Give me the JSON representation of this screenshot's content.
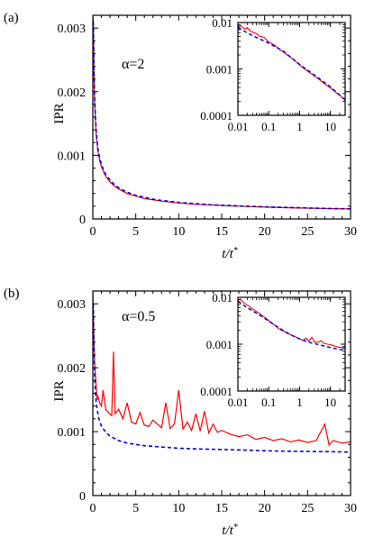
{
  "colors": {
    "data": "#ff0000",
    "fit": "#0000ee",
    "axes": "#000000"
  },
  "chart_data": [
    {
      "type": "line",
      "panel_tag": "(a)",
      "annotation": "α=2",
      "xlabel": "t/t*",
      "ylabel": "IPR",
      "xlim": [
        0,
        30
      ],
      "ylim": [
        0,
        0.0032
      ],
      "xticks": [
        0,
        5,
        10,
        15,
        20,
        25,
        30
      ],
      "yticks": [
        0,
        0.001,
        0.002,
        0.003
      ],
      "xtick_labels": [
        "0",
        "5",
        "10",
        "15",
        "20",
        "25",
        "30"
      ],
      "ytick_labels": [
        "0",
        "0.001",
        "0.002",
        "0.003"
      ],
      "series": [
        {
          "style": "solid",
          "color": "#ff0000",
          "x": [
            0,
            0.05,
            0.1,
            0.15,
            0.2,
            0.3,
            0.4,
            0.5,
            0.6,
            0.8,
            1,
            1.25,
            1.5,
            2,
            2.5,
            3,
            4,
            5,
            6,
            7,
            8,
            10,
            12,
            14,
            16,
            18,
            20,
            22,
            24,
            26,
            28,
            30
          ],
          "y": [
            0.0032,
            0.0031,
            0.0026,
            0.0022,
            0.0019,
            0.00155,
            0.00132,
            0.00118,
            0.00106,
            0.00092,
            0.00082,
            0.00074,
            0.00067,
            0.00058,
            0.00052,
            0.00047,
            0.0004,
            0.00036,
            0.00032,
            0.0003,
            0.00028,
            0.00025,
            0.00023,
            0.00022,
            0.000205,
            0.000195,
            0.000185,
            0.000178,
            0.000172,
            0.000167,
            0.000162,
            0.000158
          ]
        },
        {
          "style": "dashed",
          "color": "#0000ee",
          "x": [
            0.05,
            0.1,
            0.15,
            0.2,
            0.3,
            0.4,
            0.5,
            0.6,
            0.8,
            1,
            1.25,
            1.5,
            2,
            2.5,
            3,
            4,
            5,
            6,
            7,
            8,
            10,
            12,
            14,
            16,
            18,
            20,
            22,
            24,
            26,
            28,
            30
          ],
          "y": [
            0.0031,
            0.00265,
            0.00225,
            0.00195,
            0.0016,
            0.00137,
            0.00122,
            0.0011,
            0.00096,
            0.00086,
            0.00077,
            0.0007,
            0.00061,
            0.00054,
            0.00049,
            0.00042,
            0.00037,
            0.00034,
            0.00031,
            0.00029,
            0.00026,
            0.00024,
            0.00022,
            0.00021,
            0.0002,
            0.00019,
            0.000182,
            0.000175,
            0.000168,
            0.000163,
            0.000158
          ]
        }
      ],
      "inset": {
        "xscale": "log",
        "yscale": "log",
        "xlim": [
          0.01,
          30
        ],
        "ylim": [
          0.0001,
          0.01
        ],
        "xticks": [
          0.01,
          0.1,
          1,
          10
        ],
        "yticks": [
          0.0001,
          0.001,
          0.01
        ],
        "xtick_labels": [
          "0.01",
          "0.1",
          "1",
          "10"
        ],
        "ytick_labels": [
          "0.0001",
          "0.001",
          "0.01"
        ],
        "series": [
          {
            "style": "solid",
            "color": "#ff0000",
            "x": [
              0.01,
              0.012,
              0.015,
              0.018,
              0.02,
              0.025,
              0.03,
              0.04,
              0.05,
              0.07,
              0.1,
              0.15,
              0.2,
              0.3,
              0.5,
              0.7,
              1,
              1.5,
              2,
              3,
              5,
              7,
              10,
              15,
              20,
              30
            ],
            "y": [
              0.0082,
              0.0088,
              0.0075,
              0.0072,
              0.0078,
              0.0066,
              0.0062,
              0.0058,
              0.0051,
              0.0048,
              0.0038,
              0.0033,
              0.0028,
              0.0023,
              0.0018,
              0.0015,
              0.00122,
              0.00098,
              0.00086,
              0.00071,
              0.00055,
              0.00046,
              0.00039,
              0.00031,
              0.00027,
              0.000215
            ]
          },
          {
            "style": "dashed",
            "color": "#0000ee",
            "x": [
              0.01,
              0.03,
              0.1,
              0.3,
              1,
              3,
              10,
              30
            ],
            "y": [
              0.0078,
              0.0052,
              0.0036,
              0.0024,
              0.00125,
              0.00074,
              0.00041,
              0.000215
            ]
          }
        ]
      }
    },
    {
      "type": "line",
      "panel_tag": "(b)",
      "annotation": "α=0.5",
      "xlabel": "t/t*",
      "ylabel": "IPR",
      "xlim": [
        0,
        30
      ],
      "ylim": [
        0,
        0.0032
      ],
      "xticks": [
        0,
        5,
        10,
        15,
        20,
        25,
        30
      ],
      "yticks": [
        0,
        0.001,
        0.002,
        0.003
      ],
      "xtick_labels": [
        "0",
        "5",
        "10",
        "15",
        "20",
        "25",
        "30"
      ],
      "ytick_labels": [
        "0",
        "0.001",
        "0.002",
        "0.003"
      ],
      "series": [
        {
          "style": "solid",
          "color": "#ff0000",
          "x": [
            0,
            0.1,
            0.2,
            0.3,
            0.4,
            0.5,
            0.6,
            0.8,
            1,
            1.2,
            1.5,
            1.8,
            2.2,
            2.4,
            2.6,
            3,
            3.5,
            4,
            4.5,
            5,
            5.5,
            6,
            6.5,
            7,
            7.5,
            8,
            8.5,
            9,
            9.5,
            10,
            10.5,
            11,
            11.5,
            12,
            12.5,
            13,
            13.5,
            14,
            14.5,
            15,
            16,
            17,
            18,
            19,
            20,
            21,
            22,
            23,
            24,
            25,
            26,
            27,
            27.5,
            28,
            29,
            30
          ],
          "y": [
            0.0032,
            0.0026,
            0.0021,
            0.0019,
            0.0017,
            0.0015,
            0.00155,
            0.00145,
            0.0014,
            0.00165,
            0.00135,
            0.0013,
            0.00125,
            0.00225,
            0.00128,
            0.00135,
            0.0012,
            0.00145,
            0.00115,
            0.00112,
            0.0013,
            0.0011,
            0.00108,
            0.00118,
            0.00112,
            0.00106,
            0.00145,
            0.00105,
            0.00112,
            0.00165,
            0.00104,
            0.00115,
            0.00102,
            0.00128,
            0.00101,
            0.00132,
            0.00098,
            0.00112,
            0.00099,
            0.00102,
            0.00096,
            0.00092,
            0.00095,
            0.00088,
            0.00091,
            0.00086,
            0.00089,
            0.00084,
            0.00087,
            0.00083,
            0.00086,
            0.00112,
            0.00079,
            0.00086,
            0.00082,
            0.00084
          ]
        },
        {
          "style": "dashed",
          "color": "#0000ee",
          "x": [
            0.05,
            0.1,
            0.2,
            0.3,
            0.4,
            0.5,
            0.7,
            1,
            1.5,
            2,
            3,
            4,
            5,
            6,
            8,
            10,
            12,
            15,
            18,
            20,
            22,
            25,
            28,
            30
          ],
          "y": [
            0.003,
            0.0025,
            0.0019,
            0.0016,
            0.00145,
            0.00135,
            0.0012,
            0.00109,
            0.00099,
            0.00093,
            0.00086,
            0.00082,
            0.0008,
            0.00078,
            0.00076,
            0.00074,
            0.00073,
            0.00072,
            0.00071,
            0.0007,
            0.000695,
            0.00069,
            0.000685,
            0.00068
          ]
        }
      ],
      "inset": {
        "xscale": "log",
        "yscale": "log",
        "xlim": [
          0.01,
          30
        ],
        "ylim": [
          0.0001,
          0.01
        ],
        "xticks": [
          0.01,
          0.1,
          1,
          10
        ],
        "yticks": [
          0.0001,
          0.001,
          0.01
        ],
        "xtick_labels": [
          "0.01",
          "0.1",
          "1",
          "10"
        ],
        "ytick_labels": [
          "0.0001",
          "0.001",
          "0.01"
        ],
        "series": [
          {
            "style": "solid",
            "color": "#ff0000",
            "x": [
              0.01,
              0.012,
              0.015,
              0.02,
              0.025,
              0.03,
              0.04,
              0.05,
              0.06,
              0.08,
              0.1,
              0.13,
              0.16,
              0.2,
              0.25,
              0.3,
              0.4,
              0.5,
              0.6,
              0.8,
              1,
              1.3,
              1.6,
              2,
              2.5,
              3,
              4,
              5,
              6,
              8,
              10,
              13,
              16,
              20,
              25,
              30
            ],
            "y": [
              0.0085,
              0.0092,
              0.0078,
              0.0068,
              0.0062,
              0.0056,
              0.005,
              0.0045,
              0.0041,
              0.0036,
              0.0032,
              0.0028,
              0.0025,
              0.0022,
              0.002,
              0.0019,
              0.0017,
              0.0016,
              0.0015,
              0.0014,
              0.0013,
              0.0012,
              0.00135,
              0.00115,
              0.0014,
              0.00112,
              0.0011,
              0.0012,
              0.00105,
              0.001,
              0.00098,
              0.00092,
              0.00088,
              0.00086,
              0.00085,
              0.00084
            ]
          },
          {
            "style": "dashed",
            "color": "#0000ee",
            "x": [
              0.01,
              0.02,
              0.05,
              0.1,
              0.2,
              0.5,
              1,
              2,
              5,
              10,
              20,
              30
            ],
            "y": [
              0.0082,
              0.006,
              0.0042,
              0.0031,
              0.0023,
              0.0016,
              0.0013,
              0.0011,
              0.00095,
              0.00085,
              0.00077,
              0.00074
            ]
          }
        ]
      }
    }
  ]
}
